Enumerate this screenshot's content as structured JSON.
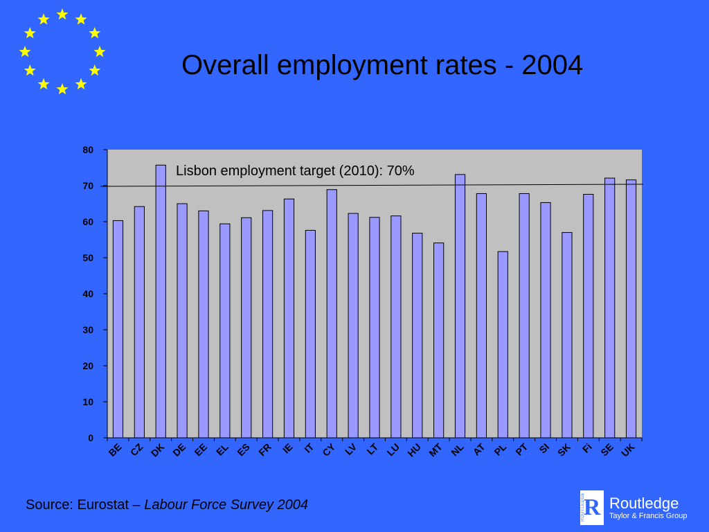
{
  "slide": {
    "title": "Overall employment rates - 2004",
    "source_prefix": "Source: Eurostat – ",
    "source_italic": "Labour Force Survey 2004"
  },
  "publisher": {
    "name": "Routledge",
    "subtitle": "Taylor & Francis Group",
    "mark_letter": "R",
    "mark_vertical": "ROUTLEDGE"
  },
  "colors": {
    "background": "#3366ff",
    "plot_area": "#c0c0c0",
    "bar_fill": "#9999ff",
    "star": "#ffff00"
  },
  "chart_data": {
    "type": "bar",
    "categories": [
      "BE",
      "CZ",
      "DK",
      "DE",
      "EE",
      "EL",
      "ES",
      "FR",
      "IE",
      "IT",
      "CY",
      "LV",
      "LT",
      "LU",
      "HU",
      "MT",
      "NL",
      "AT",
      "PL",
      "PT",
      "SI",
      "SK",
      "Fi",
      "SE",
      "UK"
    ],
    "values": [
      60.3,
      64.2,
      75.7,
      65.0,
      63.0,
      59.4,
      61.1,
      63.1,
      66.3,
      57.6,
      68.9,
      62.3,
      61.2,
      61.6,
      56.8,
      54.1,
      73.1,
      67.8,
      51.7,
      67.8,
      65.3,
      57.0,
      67.6,
      72.1,
      71.6
    ],
    "ylim": [
      0,
      80
    ],
    "yticks": [
      0,
      10,
      20,
      30,
      40,
      50,
      60,
      70,
      80
    ],
    "target_line": {
      "value": 70,
      "label": "Lisbon employment target (2010): 70%"
    },
    "grid": false,
    "legend": "none"
  }
}
